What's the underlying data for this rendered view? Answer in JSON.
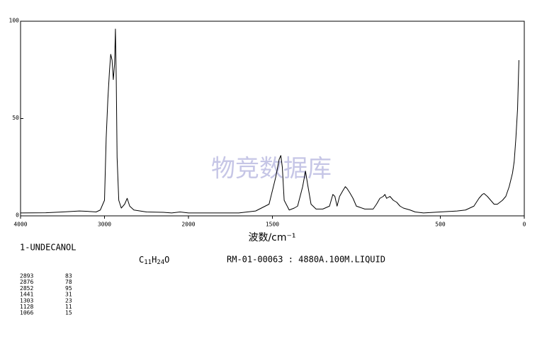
{
  "chart_data": {
    "type": "line",
    "watermark": "物竞数据库",
    "xlabel": "波数/cm⁻¹",
    "xlim": [
      4000,
      0
    ],
    "xticks": [
      4000,
      3000,
      2000,
      1500,
      500,
      0
    ],
    "ylim": [
      0,
      100
    ],
    "yticks": [
      0,
      50,
      100
    ],
    "x": [
      4000,
      3700,
      3500,
      3300,
      3200,
      3100,
      3050,
      3000,
      2980,
      2960,
      2940,
      2926,
      2910,
      2895,
      2880,
      2870,
      2860,
      2850,
      2830,
      2800,
      2760,
      2730,
      2700,
      2650,
      2500,
      2300,
      2200,
      2100,
      2000,
      1900,
      1700,
      1600,
      1520,
      1480,
      1460,
      1450,
      1441,
      1430,
      1400,
      1370,
      1350,
      1320,
      1303,
      1290,
      1270,
      1240,
      1200,
      1160,
      1140,
      1128,
      1115,
      1100,
      1080,
      1066,
      1055,
      1040,
      1020,
      1000,
      950,
      900,
      880,
      860,
      840,
      830,
      820,
      800,
      780,
      760,
      740,
      720,
      680,
      650,
      600,
      400,
      350,
      300,
      270,
      250,
      240,
      220,
      200,
      180,
      160,
      130,
      110,
      90,
      70,
      60,
      50,
      40,
      32
    ],
    "series": [
      {
        "color": "#000000",
        "values": [
          1.5,
          1.6,
          2,
          2.5,
          2.3,
          2,
          3,
          8,
          40,
          60,
          75,
          83,
          80,
          70,
          78,
          96,
          70,
          30,
          8,
          4,
          6,
          9,
          5,
          3,
          2,
          1.8,
          1.5,
          2,
          1.5,
          1.5,
          1.5,
          2.5,
          6,
          20,
          29,
          31,
          25,
          8,
          3,
          4,
          5,
          15,
          23,
          16,
          6,
          3.5,
          3.5,
          5,
          11,
          10,
          5,
          10,
          13,
          15,
          14,
          12,
          9,
          5,
          3.5,
          3.5,
          6,
          9,
          10,
          11,
          9,
          10,
          8,
          7,
          5,
          4,
          3,
          2,
          1.5,
          2.5,
          3,
          5,
          9,
          11,
          11.5,
          10,
          8,
          6,
          6,
          8,
          10,
          15,
          22,
          28,
          40,
          55,
          80
        ]
      }
    ],
    "compound": "1-UNDECANOL",
    "formula": [
      "C",
      "11",
      "H",
      "24",
      "O"
    ],
    "sample": "RM-01-00063 : 4880A.100M.LIQUID",
    "peak_table": {
      "rows": [
        [
          2893,
          83
        ],
        [
          2876,
          78
        ],
        [
          2852,
          95
        ],
        [
          1441,
          31
        ],
        [
          1303,
          23
        ],
        [
          1128,
          11
        ],
        [
          1066,
          15
        ]
      ]
    }
  }
}
